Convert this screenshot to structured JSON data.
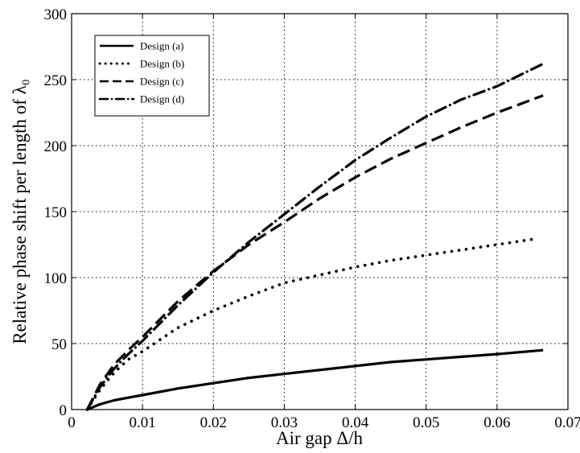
{
  "chart_data": {
    "type": "line",
    "title": "",
    "xlabel": "Air gap Δ/h",
    "ylabel": "Relative phase shift per length of λ₀",
    "xlim": [
      0,
      0.07
    ],
    "ylim": [
      0,
      300
    ],
    "xticks": [
      0,
      0.01,
      0.02,
      0.03,
      0.04,
      0.05,
      0.06,
      0.07
    ],
    "xtick_labels": [
      "0",
      "0.01",
      "0.02",
      "0.03",
      "0.04",
      "0.05",
      "0.06",
      "0.07"
    ],
    "yticks": [
      0,
      50,
      100,
      150,
      200,
      250,
      300
    ],
    "ytick_labels": [
      "0",
      "50",
      "100",
      "150",
      "200",
      "250",
      "300"
    ],
    "grid": true,
    "legend_position": "top-left",
    "series": [
      {
        "name": "Design (a)",
        "style": "solid",
        "x": [
          0.0022,
          0.004,
          0.006,
          0.008,
          0.01,
          0.015,
          0.02,
          0.025,
          0.03,
          0.035,
          0.04,
          0.045,
          0.05,
          0.055,
          0.06,
          0.0665
        ],
        "y": [
          0,
          4,
          7,
          9,
          11,
          16,
          20,
          24,
          27,
          30,
          33,
          36,
          38,
          40,
          42,
          45
        ]
      },
      {
        "name": "Design (b)",
        "style": "dotted",
        "x": [
          0.0022,
          0.004,
          0.006,
          0.008,
          0.01,
          0.015,
          0.02,
          0.025,
          0.03,
          0.035,
          0.04,
          0.045,
          0.05,
          0.055,
          0.06,
          0.065
        ],
        "y": [
          0,
          15,
          28,
          38,
          44,
          62,
          75,
          86,
          96,
          102,
          108,
          113,
          117,
          121,
          125,
          129
        ]
      },
      {
        "name": "Design (c)",
        "style": "dashed",
        "x": [
          0.0022,
          0.004,
          0.006,
          0.008,
          0.01,
          0.015,
          0.02,
          0.025,
          0.03,
          0.035,
          0.04,
          0.045,
          0.05,
          0.055,
          0.06,
          0.0665
        ],
        "y": [
          0,
          19,
          34,
          45,
          55,
          82,
          105,
          125,
          142,
          160,
          176,
          190,
          202,
          214,
          225,
          238
        ]
      },
      {
        "name": "Design (d)",
        "style": "dashdot",
        "x": [
          0.0022,
          0.004,
          0.006,
          0.008,
          0.01,
          0.015,
          0.02,
          0.025,
          0.03,
          0.035,
          0.04,
          0.045,
          0.05,
          0.055,
          0.06,
          0.0665
        ],
        "y": [
          0,
          17,
          31,
          42,
          52,
          79,
          104,
          127,
          148,
          169,
          189,
          206,
          222,
          235,
          245,
          262
        ]
      }
    ]
  }
}
